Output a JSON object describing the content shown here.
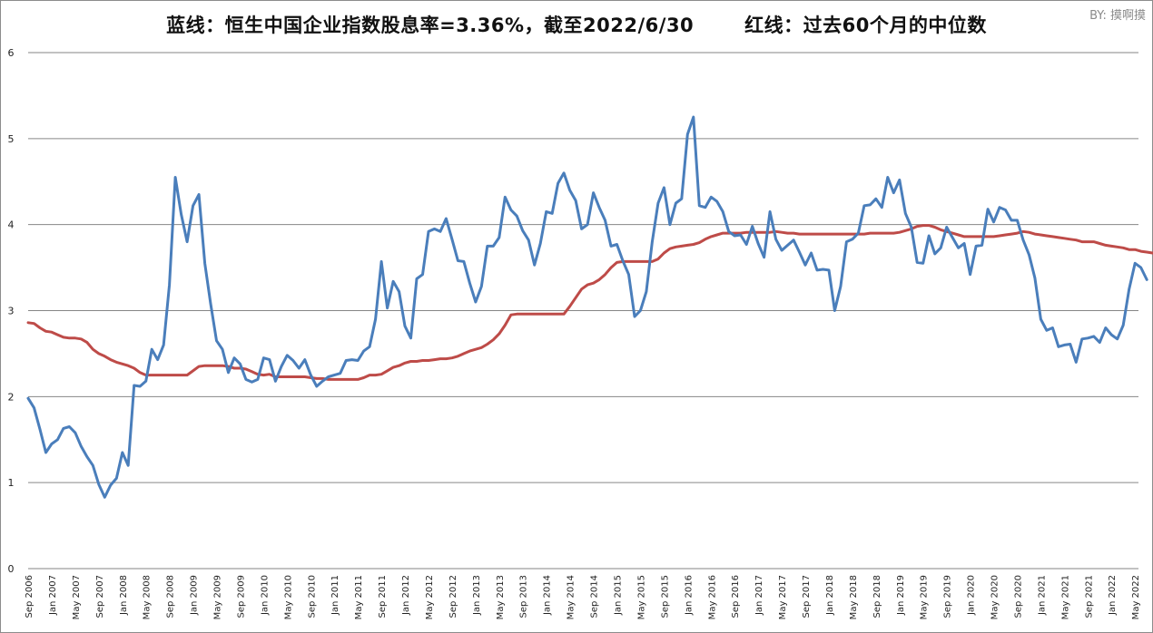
{
  "title": {
    "blue_label": "蓝线：恒生中国企业指数股息率=3.36%，截至2022/6/30",
    "red_label": "红线：过去60个月的中位数"
  },
  "byline": "BY: 摸啊摸",
  "colors": {
    "blue": "#4a7ebb",
    "red": "#be4b48",
    "grid": "#868686"
  },
  "chart_data": {
    "type": "line",
    "title": "蓝线：恒生中国企业指数股息率=3.36%，截至2022/6/30    红线：过去60个月的中位数",
    "xlabel": "",
    "ylabel": "",
    "ylim": [
      0,
      6
    ],
    "yticks": [
      0,
      1,
      2,
      3,
      4,
      5,
      6
    ],
    "grid": true,
    "legend": "none (described in title)",
    "x_start": "Sep 2006",
    "x_end": "Jun 2022",
    "frequency": "monthly",
    "xtick_labels": [
      "Sep 2006",
      "Jan 2007",
      "May 2007",
      "Sep 2007",
      "Jan 2008",
      "May 2008",
      "Sep 2008",
      "Jan 2009",
      "May 2009",
      "Sep 2009",
      "Jan 2010",
      "May 2010",
      "Sep 2010",
      "Jan 2011",
      "May 2011",
      "Sep 2011",
      "Jan 2012",
      "May 2012",
      "Sep 2012",
      "Jan 2013",
      "May 2013",
      "Sep 2013",
      "Jan 2014",
      "May 2014",
      "Sep 2014",
      "Jan 2015",
      "May 2015",
      "Sep 2015",
      "Jan 2016",
      "May 2016",
      "Sep 2016",
      "Jan 2017",
      "May 2017",
      "Sep 2017",
      "Jan 2018",
      "May 2018",
      "Sep 2018",
      "Jan 2019",
      "May 2019",
      "Sep 2019",
      "Jan 2020",
      "May 2020",
      "Sep 2020",
      "Jan 2021",
      "May 2021",
      "Sep 2021",
      "Jan 2022",
      "May 2022"
    ],
    "series": [
      {
        "name": "恒生中国企业指数股息率",
        "color": "#4a7ebb",
        "values": [
          1.98,
          1.87,
          1.62,
          1.35,
          1.45,
          1.5,
          1.63,
          1.65,
          1.58,
          1.42,
          1.3,
          1.2,
          0.98,
          0.83,
          0.97,
          1.05,
          1.35,
          1.2,
          2.13,
          2.12,
          2.18,
          2.55,
          2.43,
          2.6,
          3.3,
          4.55,
          4.12,
          3.8,
          4.22,
          4.35,
          3.55,
          3.08,
          2.65,
          2.55,
          2.28,
          2.45,
          2.38,
          2.2,
          2.17,
          2.2,
          2.45,
          2.43,
          2.18,
          2.35,
          2.48,
          2.42,
          2.33,
          2.43,
          2.25,
          2.12,
          2.18,
          2.23,
          2.25,
          2.27,
          2.42,
          2.43,
          2.42,
          2.53,
          2.58,
          2.9,
          3.57,
          3.03,
          3.34,
          3.22,
          2.82,
          2.68,
          3.37,
          3.42,
          3.92,
          3.95,
          3.92,
          4.07,
          3.83,
          3.58,
          3.57,
          3.32,
          3.1,
          3.28,
          3.75,
          3.75,
          3.85,
          4.32,
          4.17,
          4.1,
          3.93,
          3.82,
          3.53,
          3.78,
          4.15,
          4.13,
          4.48,
          4.6,
          4.4,
          4.28,
          3.95,
          4.0,
          4.37,
          4.2,
          4.05,
          3.75,
          3.77,
          3.58,
          3.42,
          2.93,
          3.0,
          3.22,
          3.8,
          4.25,
          4.43,
          4.0,
          4.25,
          4.3,
          5.05,
          5.25,
          4.22,
          4.2,
          4.32,
          4.27,
          4.15,
          3.92,
          3.87,
          3.88,
          3.77,
          3.98,
          3.78,
          3.62,
          4.15,
          3.83,
          3.7,
          3.76,
          3.82,
          3.68,
          3.53,
          3.67,
          3.47,
          3.48,
          3.47,
          3.0,
          3.28,
          3.8,
          3.83,
          3.9,
          4.22,
          4.23,
          4.3,
          4.2,
          4.55,
          4.37,
          4.52,
          4.13,
          3.97,
          3.56,
          3.55,
          3.87,
          3.66,
          3.73,
          3.97,
          3.85,
          3.73,
          3.78,
          3.42,
          3.75,
          3.76,
          4.18,
          4.03,
          4.2,
          4.17,
          4.05,
          4.05,
          3.82,
          3.65,
          3.38,
          2.9,
          2.77,
          2.8,
          2.58,
          2.6,
          2.61,
          2.4,
          2.67,
          2.68,
          2.7,
          2.63,
          2.8,
          2.72,
          2.67,
          2.83,
          3.25,
          3.55,
          3.5,
          3.36
        ]
      },
      {
        "name": "过去60个月的中位数",
        "color": "#be4b48",
        "values": [
          2.86,
          2.85,
          2.8,
          2.76,
          2.75,
          2.72,
          2.69,
          2.68,
          2.68,
          2.67,
          2.63,
          2.55,
          2.5,
          2.47,
          2.43,
          2.4,
          2.38,
          2.36,
          2.33,
          2.28,
          2.25,
          2.25,
          2.25,
          2.25,
          2.25,
          2.25,
          2.25,
          2.25,
          2.3,
          2.35,
          2.36,
          2.36,
          2.36,
          2.36,
          2.35,
          2.33,
          2.33,
          2.32,
          2.29,
          2.26,
          2.25,
          2.26,
          2.23,
          2.23,
          2.23,
          2.23,
          2.23,
          2.23,
          2.22,
          2.21,
          2.21,
          2.2,
          2.2,
          2.2,
          2.2,
          2.2,
          2.2,
          2.22,
          2.25,
          2.25,
          2.26,
          2.3,
          2.34,
          2.36,
          2.39,
          2.41,
          2.41,
          2.42,
          2.42,
          2.43,
          2.44,
          2.44,
          2.45,
          2.47,
          2.5,
          2.53,
          2.55,
          2.57,
          2.61,
          2.66,
          2.73,
          2.83,
          2.95,
          2.96,
          2.96,
          2.96,
          2.96,
          2.96,
          2.96,
          2.96,
          2.96,
          2.96,
          3.05,
          3.15,
          3.25,
          3.3,
          3.32,
          3.36,
          3.42,
          3.5,
          3.56,
          3.57,
          3.57,
          3.57,
          3.57,
          3.57,
          3.57,
          3.6,
          3.67,
          3.72,
          3.74,
          3.75,
          3.76,
          3.77,
          3.79,
          3.83,
          3.86,
          3.88,
          3.9,
          3.9,
          3.9,
          3.9,
          3.91,
          3.91,
          3.91,
          3.91,
          3.91,
          3.92,
          3.91,
          3.9,
          3.9,
          3.89,
          3.89,
          3.89,
          3.89,
          3.89,
          3.89,
          3.89,
          3.89,
          3.89,
          3.89,
          3.89,
          3.89,
          3.9,
          3.9,
          3.9,
          3.9,
          3.9,
          3.91,
          3.93,
          3.95,
          3.98,
          3.99,
          3.99,
          3.97,
          3.94,
          3.92,
          3.9,
          3.88,
          3.86,
          3.86,
          3.86,
          3.86,
          3.86,
          3.86,
          3.87,
          3.88,
          3.89,
          3.9,
          3.92,
          3.91,
          3.89,
          3.88,
          3.87,
          3.86,
          3.85,
          3.84,
          3.83,
          3.82,
          3.8,
          3.8,
          3.8,
          3.78,
          3.76,
          3.75,
          3.74,
          3.73,
          3.71,
          3.71,
          3.69,
          3.68,
          3.67,
          3.66,
          3.65,
          3.64
        ]
      }
    ]
  }
}
